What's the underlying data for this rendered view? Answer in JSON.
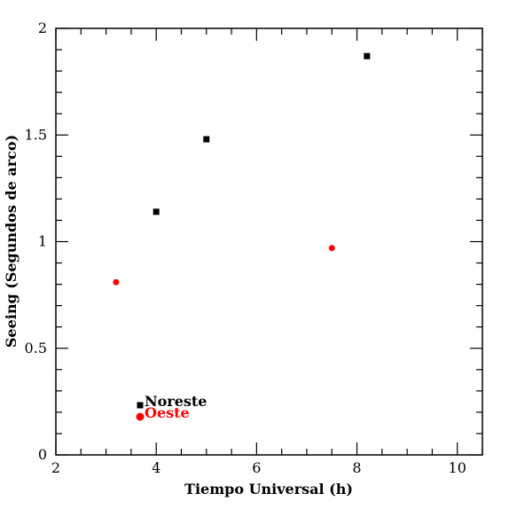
{
  "chart_data": {
    "type": "scatter",
    "xlabel": "Tiempo Universal (h)",
    "ylabel": "Seeing (Segundos de arco)",
    "xlim": [
      2,
      10.5
    ],
    "ylim": [
      0,
      2
    ],
    "x_ticks": [
      2,
      4,
      6,
      8,
      10
    ],
    "x_tick_labels": [
      "2",
      "4",
      "6",
      "8",
      "10"
    ],
    "y_ticks": [
      0,
      0.5,
      1,
      1.5,
      2
    ],
    "y_tick_labels": [
      "0",
      "0.5",
      "1",
      "1.5",
      "2"
    ],
    "grid": false,
    "legend": {
      "placement": "bottom-left",
      "entries": [
        {
          "label": "Noreste",
          "color": "#000000",
          "marker": "square"
        },
        {
          "label": "Oeste",
          "color": "#ff0000",
          "marker": "circle"
        }
      ]
    },
    "series": [
      {
        "name": "Noreste",
        "color": "#000000",
        "marker": "square",
        "points": [
          {
            "x": 4.0,
            "y": 1.14
          },
          {
            "x": 5.0,
            "y": 1.48
          },
          {
            "x": 8.2,
            "y": 1.87
          }
        ]
      },
      {
        "name": "Oeste",
        "color": "#ff0000",
        "marker": "circle",
        "points": [
          {
            "x": 3.2,
            "y": 0.81
          },
          {
            "x": 7.5,
            "y": 0.97
          }
        ]
      }
    ]
  }
}
